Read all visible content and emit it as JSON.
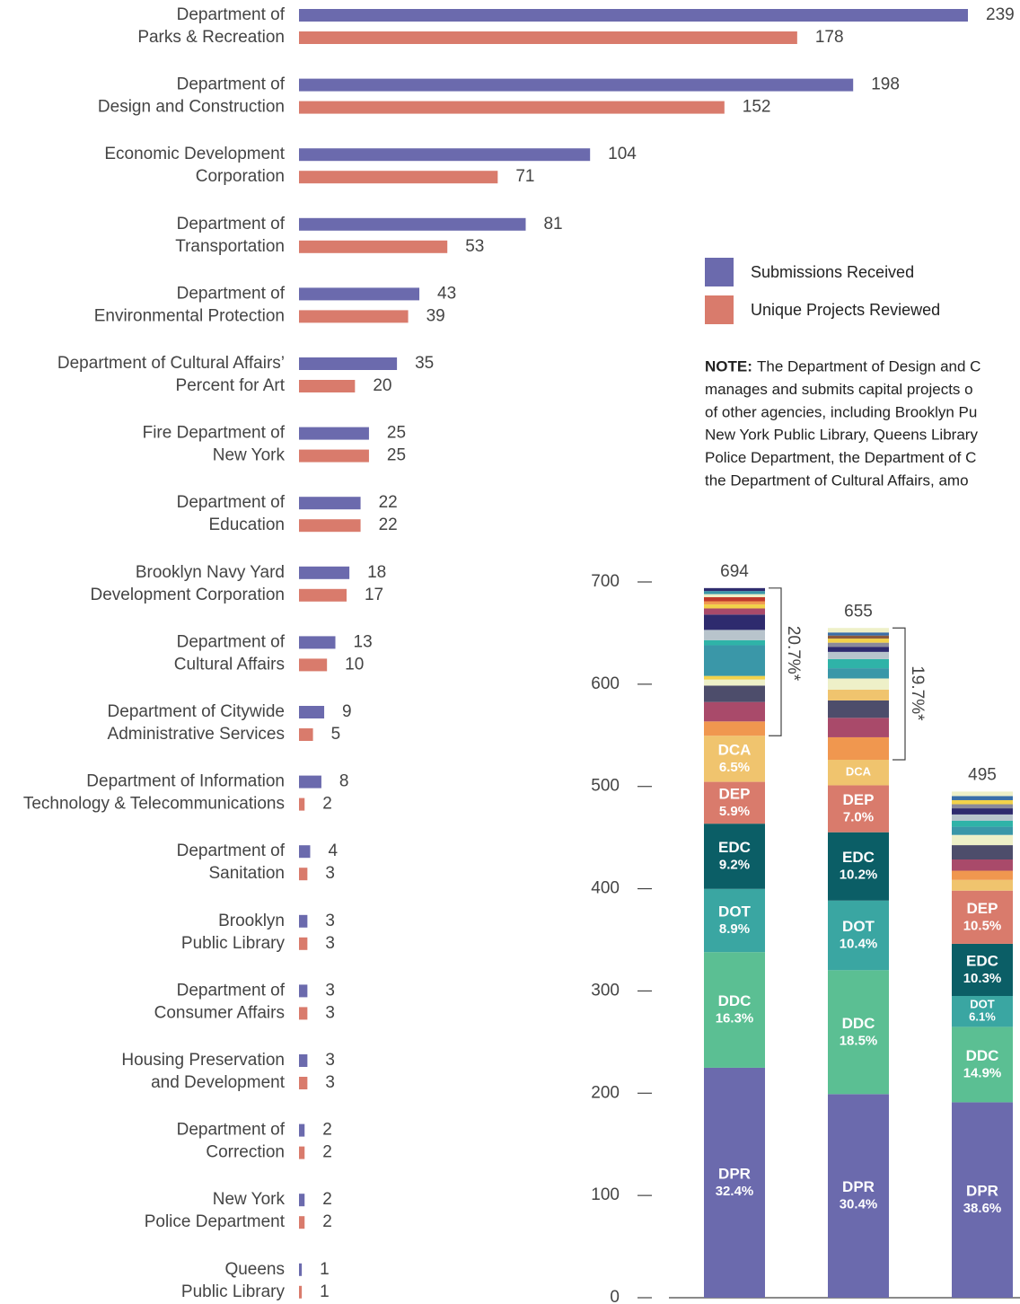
{
  "chart_data": [
    {
      "type": "hbar",
      "categories": [
        [
          "Department of",
          "Parks & Recreation"
        ],
        [
          "Department of",
          "Design and Construction"
        ],
        [
          "Economic Development",
          "Corporation"
        ],
        [
          "Department of",
          "Transportation"
        ],
        [
          "Department of",
          "Environmental Protection"
        ],
        [
          "Department of Cultural Affairs’",
          "Percent for Art"
        ],
        [
          "Fire Department of",
          "New York"
        ],
        [
          "Department of",
          "Education"
        ],
        [
          "Brooklyn Navy Yard",
          "Development Corporation"
        ],
        [
          "Department of",
          "Cultural Affairs"
        ],
        [
          "Department of Citywide",
          "Administrative Services"
        ],
        [
          "Department of Information",
          "Technology & Telecommunications"
        ],
        [
          "Department of",
          "Sanitation"
        ],
        [
          "Brooklyn",
          "Public Library"
        ],
        [
          "Department of",
          "Consumer Affairs"
        ],
        [
          "Housing Preservation",
          "and Development"
        ],
        [
          "Department of",
          "Correction"
        ],
        [
          "New York",
          "Police Department"
        ],
        [
          "Queens",
          "Public Library"
        ]
      ],
      "series": [
        {
          "name": "Submissions Received",
          "color": "#6b6aad",
          "values": [
            239,
            198,
            104,
            81,
            43,
            35,
            25,
            22,
            18,
            13,
            9,
            8,
            4,
            3,
            3,
            3,
            2,
            2,
            1
          ]
        },
        {
          "name": "Unique Projects Reviewed",
          "color": "#d97b6c",
          "values": [
            178,
            152,
            71,
            53,
            39,
            20,
            25,
            22,
            17,
            10,
            5,
            2,
            3,
            3,
            3,
            3,
            2,
            2,
            1
          ]
        }
      ]
    },
    {
      "type": "stacked_bar",
      "ylim": [
        0,
        700
      ],
      "yticks": [
        0,
        100,
        200,
        300,
        400,
        500,
        600,
        700
      ],
      "bars": [
        {
          "total": 694,
          "bracket_label": "20.7%*",
          "segments": [
            {
              "name": "DPR",
              "label": "32.4%",
              "value": 224.9,
              "color": "#6b6aad"
            },
            {
              "name": "DDC",
              "label": "16.3%",
              "value": 113.1,
              "color": "#5bbf93"
            },
            {
              "name": "DOT",
              "label": "8.9%",
              "value": 61.8,
              "color": "#3aa6a2"
            },
            {
              "name": "EDC",
              "label": "9.2%",
              "value": 63.8,
              "color": "#0b5e66"
            },
            {
              "name": "DEP",
              "label": "5.9%",
              "value": 40.9,
              "color": "#d97b6c"
            },
            {
              "name": "DCA",
              "label": "6.5%",
              "value": 45.1,
              "color": "#f0c46e"
            },
            {
              "value": 14,
              "color": "#f0974f"
            },
            {
              "value": 19,
              "color": "#a94a6a"
            },
            {
              "value": 16,
              "color": "#4d4d6b"
            },
            {
              "value": 6,
              "color": "#eef0c8"
            },
            {
              "value": 3.5,
              "color": "#f2d24a"
            },
            {
              "value": 30,
              "color": "#3a97a8"
            },
            {
              "value": 5,
              "color": "#2fb3a8"
            },
            {
              "value": 10,
              "color": "#b8c4cc"
            },
            {
              "value": 15,
              "color": "#2e2b6e"
            },
            {
              "value": 6,
              "color": "#a94a6a"
            },
            {
              "value": 4,
              "color": "#f2d24a"
            },
            {
              "value": 3,
              "color": "#f0974f"
            },
            {
              "value": 4,
              "color": "#c0392b"
            },
            {
              "value": 3,
              "color": "#eef0c8"
            },
            {
              "value": 3,
              "color": "#3a97a8"
            },
            {
              "value": 2.9,
              "color": "#2e2b6e"
            }
          ]
        },
        {
          "total": 655,
          "bracket_label": "19.7%*",
          "segments": [
            {
              "name": "DPR",
              "label": "30.4%",
              "value": 199.1,
              "color": "#6b6aad"
            },
            {
              "name": "DDC",
              "label": "18.5%",
              "value": 121.2,
              "color": "#5bbf93"
            },
            {
              "name": "DOT",
              "label": "10.4%",
              "value": 68.1,
              "color": "#3aa6a2"
            },
            {
              "name": "EDC",
              "label": "10.2%",
              "value": 66.8,
              "color": "#0b5e66"
            },
            {
              "name": "DEP",
              "label": "7.0%",
              "value": 45.9,
              "color": "#d97b6c"
            },
            {
              "name": "DCA",
              "value": 25,
              "color": "#f0c46e"
            },
            {
              "value": 22,
              "color": "#f0974f"
            },
            {
              "value": 19,
              "color": "#a94a6a"
            },
            {
              "value": 17,
              "color": "#4d4d6b"
            },
            {
              "value": 10.5,
              "color": "#f0c46e"
            },
            {
              "value": 11,
              "color": "#eef0c8"
            },
            {
              "value": 10,
              "color": "#3a97a8"
            },
            {
              "value": 9,
              "color": "#2fb3a8"
            },
            {
              "value": 7,
              "color": "#b8c4cc"
            },
            {
              "value": 5,
              "color": "#2e2b6e"
            },
            {
              "value": 4,
              "color": "#8a8a9a"
            },
            {
              "value": 4,
              "color": "#f2d24a"
            },
            {
              "value": 3,
              "color": "#8b5a3c"
            },
            {
              "value": 3,
              "color": "#3a6fa8"
            },
            {
              "value": 4.4,
              "color": "#eef0c8"
            }
          ]
        },
        {
          "total": 495,
          "segments": [
            {
              "name": "DPR",
              "label": "38.6%",
              "value": 191.1,
              "color": "#6b6aad"
            },
            {
              "name": "DDC",
              "label": "14.9%",
              "value": 73.8,
              "color": "#5bbf93"
            },
            {
              "name": "DOT",
              "label": "6.1%",
              "value": 30.2,
              "color": "#3aa6a2"
            },
            {
              "name": "EDC",
              "label": "10.3%",
              "value": 51.0,
              "color": "#0b5e66"
            },
            {
              "name": "DEP",
              "label": "10.5%",
              "value": 52.0,
              "color": "#d97b6c"
            },
            {
              "value": 10.5,
              "color": "#f0c46e"
            },
            {
              "value": 9,
              "color": "#f0974f"
            },
            {
              "value": 11,
              "color": "#a94a6a"
            },
            {
              "value": 14,
              "color": "#4d4d6b"
            },
            {
              "value": 10,
              "color": "#eef0c8"
            },
            {
              "value": 8,
              "color": "#3a97a8"
            },
            {
              "value": 6,
              "color": "#2fb3a8"
            },
            {
              "value": 6,
              "color": "#b8c4cc"
            },
            {
              "value": 6,
              "color": "#2e2b6e"
            },
            {
              "value": 4,
              "color": "#8a8a9a"
            },
            {
              "value": 4,
              "color": "#f2d24a"
            },
            {
              "value": 4,
              "color": "#3a6fa8"
            },
            {
              "value": 4.4,
              "color": "#eef0c8"
            }
          ]
        }
      ]
    }
  ],
  "note": {
    "label": "NOTE:",
    "lines": [
      "The Department of Design and C",
      "manages and submits capital projects o",
      "of other agencies, including Brooklyn Pu",
      "New York Public Library, Queens Library",
      "Police Department, the Department of C",
      "the Department of Cultural Affairs, amo"
    ]
  }
}
